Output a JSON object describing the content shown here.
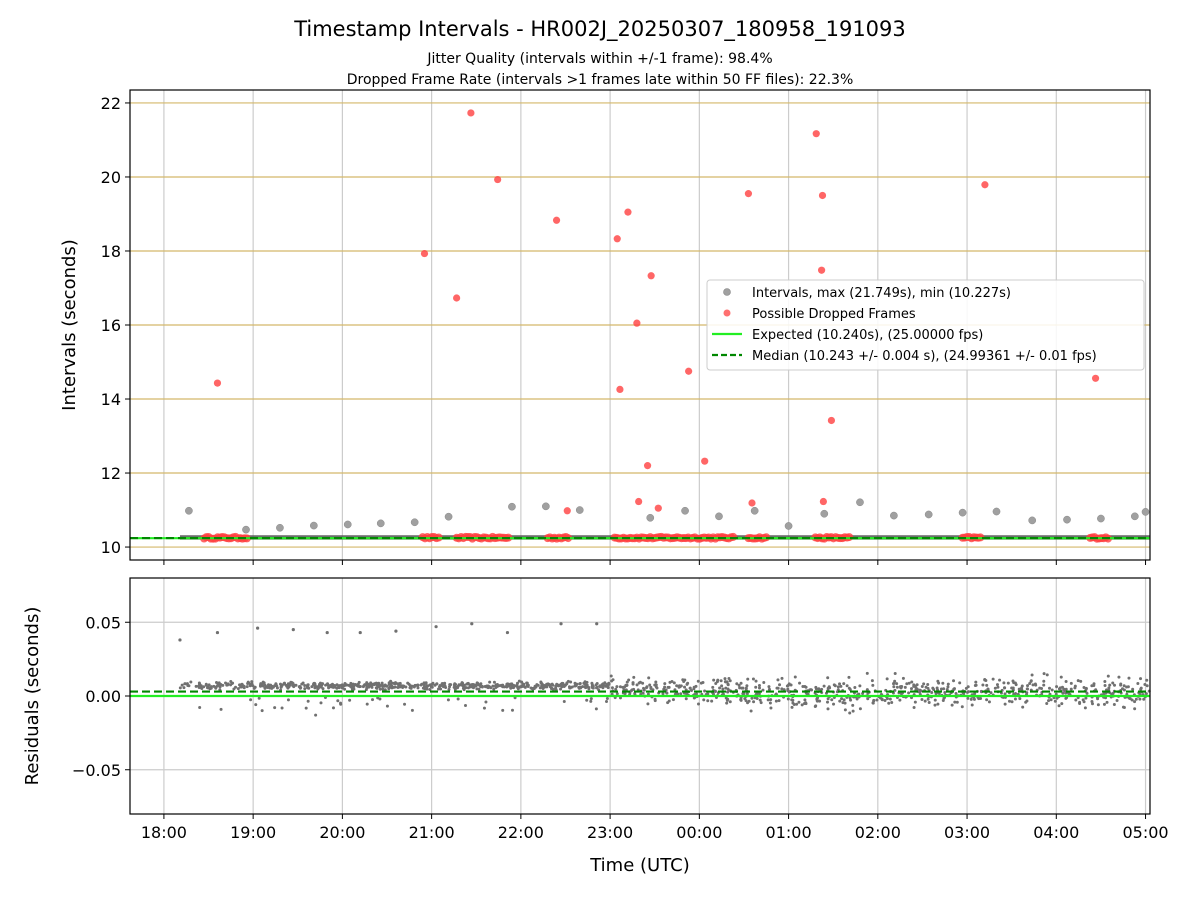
{
  "title": "Timestamp Intervals - HR002J_20250307_180958_191093",
  "subtitle_1": "Jitter Quality (intervals within +/-1 frame): 98.4%",
  "subtitle_2": "Dropped Frame Rate (intervals >1 frames late within 50 FF files): 22.3%",
  "colors": {
    "interval": "#a0a0a0",
    "dropped": "#ff4040",
    "expected": "#22ee22",
    "median": "#008800",
    "hgrid_top": "#d4b86a",
    "grid": "#cccccc",
    "residual": "#707070"
  },
  "chart_data": [
    {
      "type": "scatter",
      "ylabel": "Intervals (seconds)",
      "xlabel": "",
      "x_units": "hours since 18:00 UTC on the chart's time axis",
      "xlim": [
        -0.38,
        11.05
      ],
      "ylim": [
        9.65,
        22.35
      ],
      "yticks": [
        10,
        12,
        14,
        16,
        18,
        20,
        22
      ],
      "ytick_labels": [
        "10",
        "12",
        "14",
        "16",
        "18",
        "20",
        "22"
      ],
      "grid": true,
      "legend_position": "center-right",
      "legend": {
        "intervals": "Intervals, max (21.749s), min (10.227s)",
        "dropped": "Possible Dropped Frames",
        "expected": "Expected (10.240s), (25.00000 fps)",
        "median": "Median (10.243 +/- 0.004 s), (24.99361 +/- 0.01 fps)"
      },
      "expected": 10.24,
      "median": 10.243,
      "band": [
        10.2,
        10.32
      ],
      "series": [
        {
          "name": "Intervals, max (21.749s), min (10.227s)",
          "x": [
            0.28,
            0.92,
            1.3,
            1.68,
            2.06,
            2.43,
            2.81,
            3.19,
            3.9,
            4.28,
            4.66,
            5.45,
            5.84,
            6.22,
            6.62,
            7.0,
            7.4,
            7.8,
            8.18,
            8.57,
            8.95,
            9.33,
            9.73,
            10.12,
            10.5,
            10.88,
            11.0
          ],
          "y": [
            10.98,
            10.47,
            10.52,
            10.58,
            10.61,
            10.64,
            10.67,
            10.82,
            11.09,
            11.1,
            11.0,
            10.79,
            10.98,
            10.83,
            10.98,
            10.57,
            10.9,
            11.21,
            10.85,
            10.88,
            10.93,
            10.96,
            10.72,
            10.74,
            10.77,
            10.83,
            10.95
          ]
        },
        {
          "name": "Possible Dropped Frames",
          "x": [
            0.6,
            2.92,
            3.28,
            3.44,
            3.74,
            4.4,
            4.52,
            5.08,
            5.11,
            5.2,
            5.3,
            5.32,
            5.42,
            5.46,
            5.54,
            5.88,
            6.06,
            6.55,
            6.59,
            7.31,
            7.37,
            7.38,
            7.39,
            7.48,
            9.2,
            10.44
          ],
          "y": [
            14.43,
            17.93,
            16.73,
            21.73,
            19.93,
            18.83,
            10.98,
            18.33,
            14.26,
            19.05,
            16.05,
            11.23,
            12.2,
            17.33,
            11.05,
            14.75,
            12.32,
            19.55,
            11.19,
            21.17,
            17.48,
            19.5,
            11.23,
            13.42,
            19.79,
            14.56
          ]
        }
      ],
      "dropped_clusters_x": [
        [
          0.45,
          0.93
        ],
        [
          2.9,
          3.08
        ],
        [
          3.28,
          3.86
        ],
        [
          4.3,
          4.53
        ],
        [
          5.05,
          5.95
        ],
        [
          5.98,
          6.38
        ],
        [
          6.55,
          6.75
        ],
        [
          7.3,
          7.68
        ],
        [
          8.95,
          9.15
        ],
        [
          10.38,
          10.58
        ]
      ]
    },
    {
      "type": "scatter",
      "ylabel": "Residuals (seconds)",
      "xlabel": "Time (UTC)",
      "x_units": "hours since 18:00 UTC on the chart's time axis",
      "xlim": [
        -0.38,
        11.05
      ],
      "ylim": [
        -0.08,
        0.08
      ],
      "yticks": [
        -0.05,
        0.0,
        0.05
      ],
      "ytick_labels": [
        "−0.05",
        "0.00",
        "0.05"
      ],
      "xticks": [
        0,
        1,
        2,
        3,
        4,
        5,
        6,
        7,
        8,
        9,
        10,
        11
      ],
      "xtick_labels": [
        "18:00",
        "19:00",
        "20:00",
        "21:00",
        "22:00",
        "23:00",
        "00:00",
        "01:00",
        "02:00",
        "03:00",
        "04:00",
        "05:00"
      ],
      "grid": true,
      "expected": 0.0,
      "median": 0.003,
      "outliers_x": [
        0.18,
        0.6,
        1.05,
        1.45,
        1.83,
        2.2,
        2.6,
        3.05,
        3.45,
        3.85,
        4.45,
        4.85
      ],
      "outliers_y": [
        0.038,
        0.043,
        0.046,
        0.045,
        0.043,
        0.043,
        0.044,
        0.047,
        0.049,
        0.043,
        0.049,
        0.049
      ],
      "groups": [
        {
          "from": 0.18,
          "to": 5.0,
          "level": 0.007,
          "spread": 0.0015
        },
        {
          "from": 5.0,
          "to": 6.5,
          "level": 0.004,
          "spread": 0.005
        },
        {
          "from": 6.5,
          "to": 11.05,
          "level": 0.002,
          "spread": 0.006
        }
      ]
    }
  ]
}
